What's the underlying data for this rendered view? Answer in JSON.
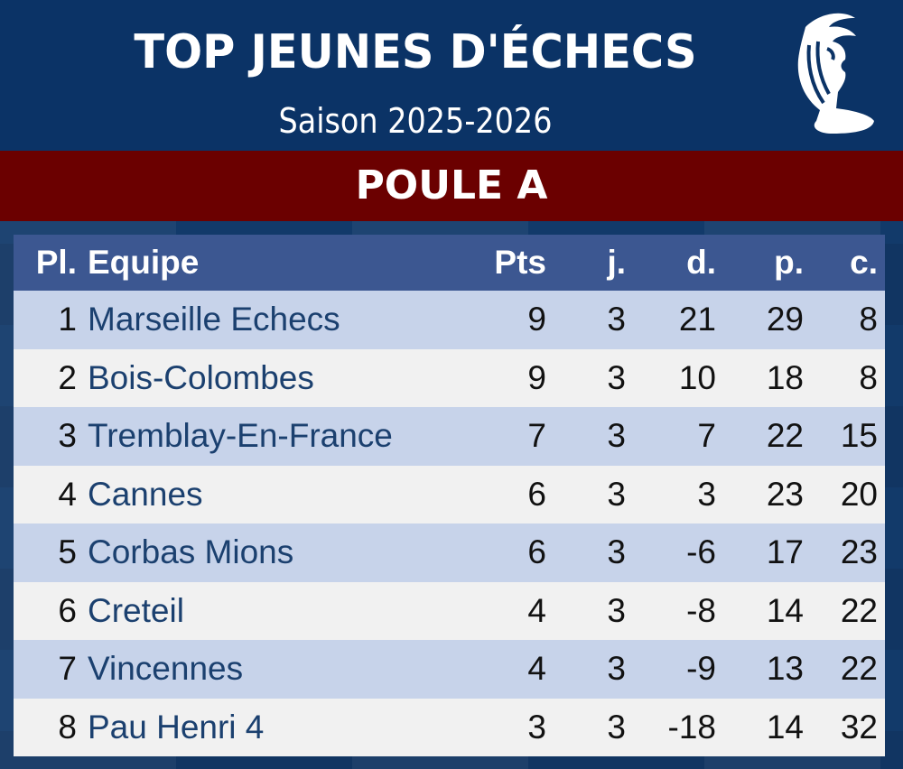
{
  "header": {
    "title": "TOP JEUNES D'ÉCHECS",
    "season": "Saison 2025-2026",
    "logo": "chess-knight-rooster-icon"
  },
  "group": "POULE A",
  "colors": {
    "header_bg": "#0b3366",
    "band_bg": "#6b0000",
    "table_header_bg": "#3c5791",
    "row_alt": "#c7d3ea",
    "team_text": "#1b406f"
  },
  "table": {
    "columns": [
      "Pl.",
      "Equipe",
      "Pts",
      "j.",
      "d.",
      "p.",
      "c."
    ],
    "rows": [
      [
        "1",
        "Marseille Echecs",
        "9",
        "3",
        "21",
        "29",
        "8"
      ],
      [
        "2",
        "Bois-Colombes",
        "9",
        "3",
        "10",
        "18",
        "8"
      ],
      [
        "3",
        "Tremblay-En-France",
        "7",
        "3",
        "7",
        "22",
        "15"
      ],
      [
        "4",
        "Cannes",
        "6",
        "3",
        "3",
        "23",
        "20"
      ],
      [
        "5",
        "Corbas Mions",
        "6",
        "3",
        "-6",
        "17",
        "23"
      ],
      [
        "6",
        "Creteil",
        "4",
        "3",
        "-8",
        "14",
        "22"
      ],
      [
        "7",
        "Vincennes",
        "4",
        "3",
        "-9",
        "13",
        "22"
      ],
      [
        "8",
        "Pau Henri 4",
        "3",
        "3",
        "-18",
        "14",
        "32"
      ]
    ]
  }
}
